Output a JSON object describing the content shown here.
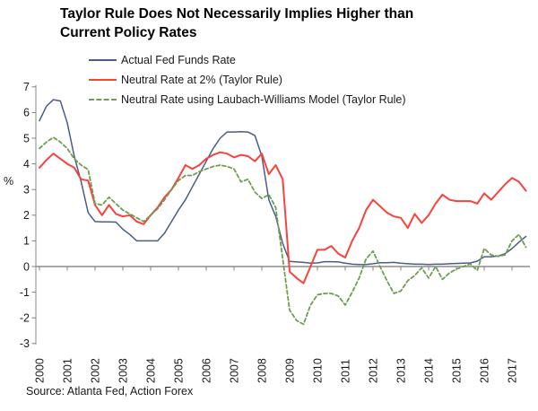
{
  "title": {
    "line1": "Taylor Rule Does Not Necessarily Implies Higher than",
    "line2": "Current Policy Rates"
  },
  "source": "Source: Atlanta Fed, Action Forex",
  "colors": {
    "fed_funds_line": "#4A5C88",
    "taylor_2pct_line": "#F8423C",
    "laubach_williams_line": "#6E9E50",
    "axis_gray": "#9C9C9C",
    "text_black": "#1A1A1A"
  },
  "chart_data": {
    "type": "line",
    "title": "Taylor Rule Does Not Necessarily Implies Higher than Current Policy Rates",
    "ylabel": "%",
    "ylim": [
      -3,
      7
    ],
    "yticks": [
      7,
      6,
      5,
      4,
      3,
      2,
      1,
      0,
      -1,
      -2,
      -3
    ],
    "x_unit": "quarterly",
    "x_range": [
      "2000Q1",
      "2017Q3"
    ],
    "xticklabels": [
      "2000",
      "2001",
      "2002",
      "2003",
      "2004",
      "2005",
      "2006",
      "2007",
      "2008",
      "2009",
      "2010",
      "2011",
      "2012",
      "2013",
      "2014",
      "2015",
      "2016",
      "2017"
    ],
    "grid": "horizontal line at zero only",
    "legend_position": "top-left",
    "series": [
      {
        "name": "Actual Fed Funds Rate",
        "color": "#4A5C88",
        "style": "solid",
        "values": [
          5.68,
          6.25,
          6.5,
          6.45,
          5.6,
          4.3,
          3.3,
          2.1,
          1.75,
          1.74,
          1.74,
          1.73,
          1.45,
          1.25,
          1.0,
          1.0,
          1.0,
          1.0,
          1.3,
          1.75,
          2.2,
          2.6,
          3.1,
          3.6,
          4.1,
          4.6,
          5.0,
          5.24,
          5.24,
          5.25,
          5.24,
          5.1,
          4.3,
          2.6,
          1.95,
          0.9,
          0.2,
          0.18,
          0.16,
          0.13,
          0.14,
          0.19,
          0.19,
          0.18,
          0.13,
          0.09,
          0.08,
          0.08,
          0.11,
          0.15,
          0.15,
          0.16,
          0.13,
          0.11,
          0.09,
          0.09,
          0.08,
          0.09,
          0.09,
          0.11,
          0.12,
          0.13,
          0.14,
          0.21,
          0.38,
          0.38,
          0.41,
          0.5,
          0.7,
          0.95,
          1.17
        ]
      },
      {
        "name": "Neutral Rate at 2% (Taylor Rule)",
        "color": "#F8423C",
        "style": "solid",
        "values": [
          3.85,
          4.15,
          4.4,
          4.2,
          4.0,
          3.85,
          3.4,
          3.35,
          2.4,
          2.0,
          2.4,
          2.05,
          1.95,
          2.0,
          1.75,
          1.65,
          2.0,
          2.3,
          2.7,
          3.0,
          3.45,
          3.95,
          3.8,
          3.95,
          4.2,
          4.35,
          4.45,
          4.4,
          4.25,
          4.35,
          4.3,
          4.1,
          4.4,
          3.6,
          3.95,
          3.4,
          -0.2,
          -0.45,
          -0.65,
          0.0,
          0.65,
          0.65,
          0.8,
          0.5,
          0.35,
          1.0,
          1.5,
          2.2,
          2.6,
          2.35,
          2.1,
          1.95,
          1.9,
          1.5,
          2.05,
          1.7,
          2.0,
          2.45,
          2.8,
          2.6,
          2.55,
          2.55,
          2.55,
          2.45,
          2.85,
          2.6,
          2.9,
          3.2,
          3.45,
          3.3,
          2.95
        ]
      },
      {
        "name": "Neutral Rate using Laubach-Williams Model (Taylor Rule)",
        "color": "#6E9E50",
        "style": "dashed",
        "values": [
          4.6,
          4.85,
          5.03,
          4.85,
          4.6,
          4.2,
          3.95,
          3.78,
          2.45,
          2.4,
          2.7,
          2.45,
          2.2,
          2.05,
          1.9,
          1.75,
          2.0,
          2.25,
          2.6,
          3.0,
          3.35,
          3.55,
          3.55,
          3.7,
          3.8,
          3.9,
          3.95,
          3.9,
          3.8,
          3.3,
          3.4,
          2.9,
          2.65,
          2.8,
          2.3,
          0.3,
          -1.7,
          -2.1,
          -2.25,
          -1.5,
          -1.1,
          -1.05,
          -1.05,
          -1.15,
          -1.5,
          -1.0,
          -0.45,
          0.3,
          0.6,
          0.0,
          -0.55,
          -1.05,
          -0.95,
          -0.55,
          -0.35,
          -0.05,
          -0.45,
          0.0,
          -0.5,
          -0.25,
          -0.1,
          0.0,
          0.1,
          -0.15,
          0.7,
          0.45,
          0.4,
          0.45,
          1.0,
          1.25,
          0.75
        ]
      }
    ]
  }
}
